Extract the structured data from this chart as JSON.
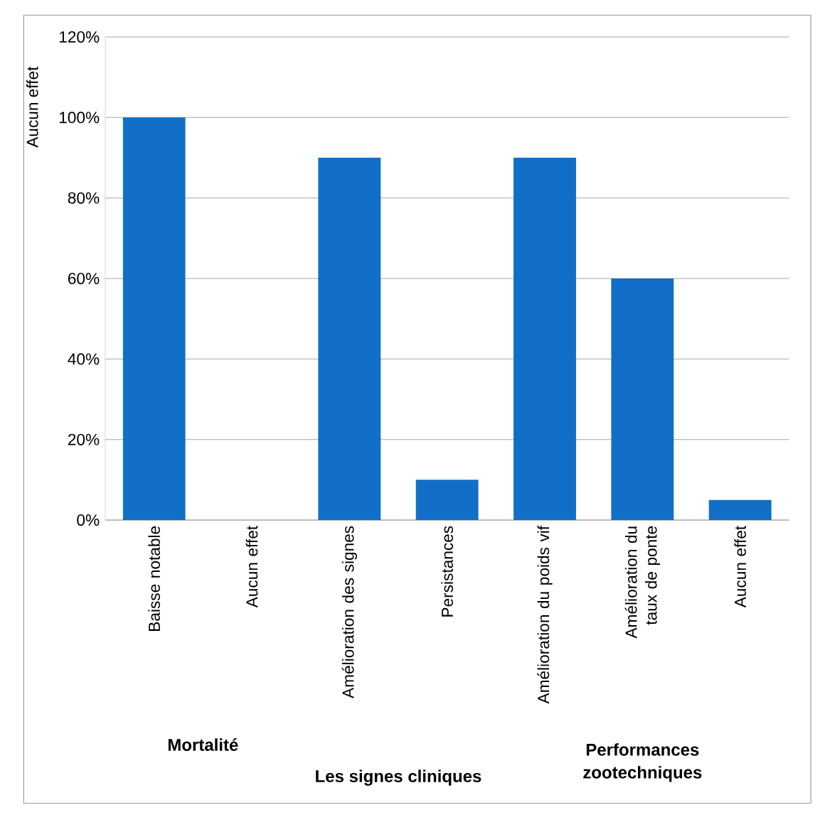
{
  "chart_data": {
    "type": "bar",
    "categories": [
      "Baisse notable",
      "Aucun effet",
      "Amélioration des signes",
      "Persistances",
      "Amélioration du poids vif",
      "Amélioration du taux de ponte",
      "Aucun effet"
    ],
    "values": [
      100,
      0,
      90,
      10,
      90,
      60,
      5
    ],
    "color": "#116fc7",
    "ylim": [
      0,
      120
    ],
    "yticks": [
      {
        "value": 0,
        "label": "0%"
      },
      {
        "value": 20,
        "label": "20%"
      },
      {
        "value": 40,
        "label": "40%"
      },
      {
        "value": 60,
        "label": "60%"
      },
      {
        "value": 80,
        "label": "80%"
      },
      {
        "value": 100,
        "label": "100%"
      },
      {
        "value": 120,
        "label": "120%"
      }
    ],
    "grid": "y",
    "annotations": [
      "Aucun effet",
      "Mortalité",
      "Les signes cliniques",
      "Performances zootechniques"
    ]
  }
}
